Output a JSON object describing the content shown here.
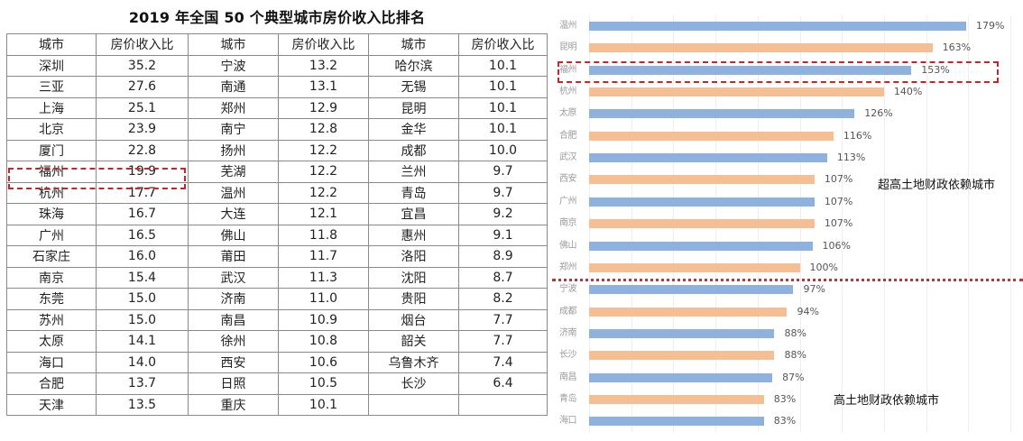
{
  "table": {
    "title": "2019 年全国 50 个典型城市房价收入比排名",
    "headers": [
      "城市",
      "房价收入比",
      "城市",
      "房价收入比",
      "城市",
      "房价收入比"
    ],
    "rows": [
      [
        "深圳",
        "35.2",
        "宁波",
        "13.2",
        "哈尔滨",
        "10.1"
      ],
      [
        "三亚",
        "27.6",
        "南通",
        "13.1",
        "无锡",
        "10.1"
      ],
      [
        "上海",
        "25.1",
        "郑州",
        "12.9",
        "昆明",
        "10.1"
      ],
      [
        "北京",
        "23.9",
        "南宁",
        "12.8",
        "金华",
        "10.1"
      ],
      [
        "厦门",
        "22.8",
        "扬州",
        "12.2",
        "成都",
        "10.0"
      ],
      [
        "福州",
        "19.9",
        "芜湖",
        "12.2",
        "兰州",
        "9.7"
      ],
      [
        "杭州",
        "17.7",
        "温州",
        "12.2",
        "青岛",
        "9.7"
      ],
      [
        "珠海",
        "16.7",
        "大连",
        "12.1",
        "宜昌",
        "9.2"
      ],
      [
        "广州",
        "16.5",
        "佛山",
        "11.8",
        "惠州",
        "9.1"
      ],
      [
        "石家庄",
        "16.0",
        "莆田",
        "11.7",
        "洛阳",
        "8.9"
      ],
      [
        "南京",
        "15.4",
        "武汉",
        "11.3",
        "沈阳",
        "8.7"
      ],
      [
        "东莞",
        "15.0",
        "济南",
        "11.0",
        "贵阳",
        "8.2"
      ],
      [
        "苏州",
        "15.0",
        "南昌",
        "10.9",
        "烟台",
        "7.7"
      ],
      [
        "太原",
        "14.1",
        "徐州",
        "10.8",
        "韶关",
        "7.7"
      ],
      [
        "海口",
        "14.0",
        "西安",
        "10.6",
        "乌鲁木齐",
        "7.4"
      ],
      [
        "合肥",
        "13.7",
        "日照",
        "10.5",
        "长沙",
        "6.4"
      ],
      [
        "天津",
        "13.5",
        "重庆",
        "10.1",
        "",
        ""
      ]
    ],
    "highlight_row": 5
  },
  "chart": {
    "annotation_high": "超高土地财政依赖城市",
    "annotation_low": "高土地财政依赖城市",
    "colors": {
      "blue": "#8eb1de",
      "orange": "#f6bf93",
      "highlight": "#c0292b",
      "divider": "#b33a3a"
    }
  },
  "chart_data": [
    {
      "type": "table",
      "title": "2019 年全国 50 个典型城市房价收入比排名",
      "columns": [
        "城市",
        "房价收入比"
      ],
      "rows": [
        [
          "深圳",
          35.2
        ],
        [
          "三亚",
          27.6
        ],
        [
          "上海",
          25.1
        ],
        [
          "北京",
          23.9
        ],
        [
          "厦门",
          22.8
        ],
        [
          "福州",
          19.9
        ],
        [
          "杭州",
          17.7
        ],
        [
          "珠海",
          16.7
        ],
        [
          "广州",
          16.5
        ],
        [
          "石家庄",
          16.0
        ],
        [
          "南京",
          15.4
        ],
        [
          "东莞",
          15.0
        ],
        [
          "苏州",
          15.0
        ],
        [
          "太原",
          14.1
        ],
        [
          "海口",
          14.0
        ],
        [
          "合肥",
          13.7
        ],
        [
          "天津",
          13.5
        ],
        [
          "宁波",
          13.2
        ],
        [
          "南通",
          13.1
        ],
        [
          "郑州",
          12.9
        ],
        [
          "南宁",
          12.8
        ],
        [
          "扬州",
          12.2
        ],
        [
          "芜湖",
          12.2
        ],
        [
          "温州",
          12.2
        ],
        [
          "大连",
          12.1
        ],
        [
          "佛山",
          11.8
        ],
        [
          "莆田",
          11.7
        ],
        [
          "武汉",
          11.3
        ],
        [
          "济南",
          11.0
        ],
        [
          "南昌",
          10.9
        ],
        [
          "徐州",
          10.8
        ],
        [
          "西安",
          10.6
        ],
        [
          "日照",
          10.5
        ],
        [
          "重庆",
          10.1
        ],
        [
          "哈尔滨",
          10.1
        ],
        [
          "无锡",
          10.1
        ],
        [
          "昆明",
          10.1
        ],
        [
          "金华",
          10.1
        ],
        [
          "成都",
          10.0
        ],
        [
          "兰州",
          9.7
        ],
        [
          "青岛",
          9.7
        ],
        [
          "宜昌",
          9.2
        ],
        [
          "惠州",
          9.1
        ],
        [
          "洛阳",
          8.9
        ],
        [
          "沈阳",
          8.7
        ],
        [
          "贵阳",
          8.2
        ],
        [
          "烟台",
          7.7
        ],
        [
          "韶关",
          7.7
        ],
        [
          "乌鲁木齐",
          7.4
        ],
        [
          "长沙",
          6.4
        ]
      ],
      "highlight": "福州"
    },
    {
      "type": "bar",
      "orientation": "horizontal",
      "title": "",
      "xlabel": "",
      "ylabel": "",
      "unit": "%",
      "xlim": [
        0,
        200
      ],
      "grid": true,
      "categories": [
        "温州",
        "昆明",
        "福州",
        "杭州",
        "太原",
        "合肥",
        "武汉",
        "西安",
        "广州",
        "南京",
        "佛山",
        "郑州",
        "宁波",
        "成都",
        "济南",
        "长沙",
        "南昌",
        "青岛",
        "海口"
      ],
      "values": [
        179,
        163,
        153,
        140,
        126,
        116,
        113,
        107,
        107,
        107,
        106,
        100,
        97,
        94,
        88,
        88,
        87,
        83,
        83
      ],
      "labels": [
        "179%",
        "163%",
        "153%",
        "140%",
        "126%",
        "116%",
        "113%",
        "107%",
        "107%",
        "107%",
        "106%",
        "100%",
        "97%",
        "94%",
        "88%",
        "88%",
        "87%",
        "83%",
        "83%"
      ],
      "bar_colors": [
        "blue",
        "orange",
        "blue",
        "orange",
        "blue",
        "orange",
        "blue",
        "orange",
        "blue",
        "orange",
        "blue",
        "orange",
        "blue",
        "orange",
        "blue",
        "orange",
        "blue",
        "orange",
        "blue"
      ],
      "annotations": [
        {
          "text": "超高土地财政依赖城市",
          "group": "≥100%"
        },
        {
          "text": "高土地财政依赖城市",
          "group": "<100%"
        }
      ],
      "divider_between": [
        "郑州",
        "宁波"
      ],
      "highlight": "福州"
    }
  ]
}
